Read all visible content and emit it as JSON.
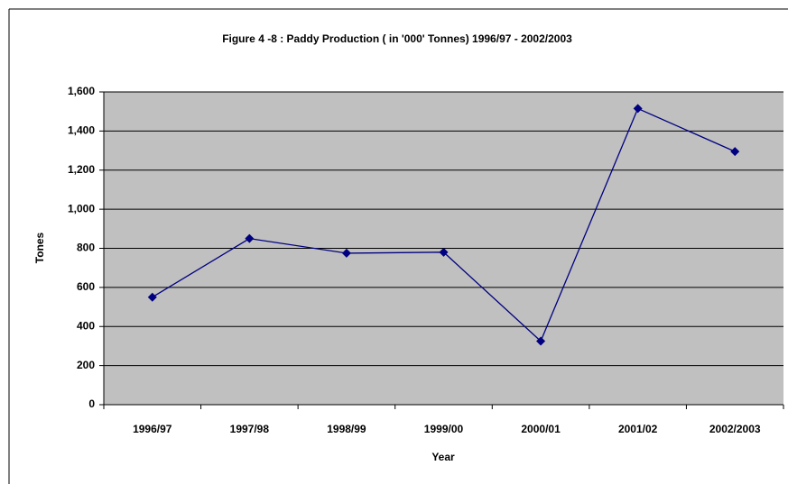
{
  "chart_data": {
    "type": "line",
    "title": "Figure 4 -8 : Paddy Production ( in '000' Tonnes) 1996/97 - 2002/2003",
    "x_label": "Year",
    "y_label": "Tones",
    "categories": [
      "1996/97",
      "1997/98",
      "1998/99",
      "1999/00",
      "2000/01",
      "2001/02",
      "2002/2003"
    ],
    "series": [
      {
        "name": "Paddy Production",
        "color": "#000080",
        "values": [
          550,
          850,
          775,
          780,
          325,
          1515,
          1295
        ]
      }
    ],
    "ylim": [
      0,
      1600
    ],
    "yticks": [
      0,
      {
        "value": 200,
        "label": "200"
      },
      {
        "value": 400,
        "label": "400"
      },
      {
        "value": 600,
        "label": "600"
      },
      {
        "value": 800,
        "label": "800"
      },
      {
        "value": 1000,
        "label": "1,000"
      },
      {
        "value": 1200,
        "label": "1,200"
      },
      {
        "value": 1400,
        "label": "1,400"
      },
      {
        "value": 1600,
        "label": "1,600"
      }
    ],
    "grid": true,
    "plot_background": "#c0c0c0"
  }
}
